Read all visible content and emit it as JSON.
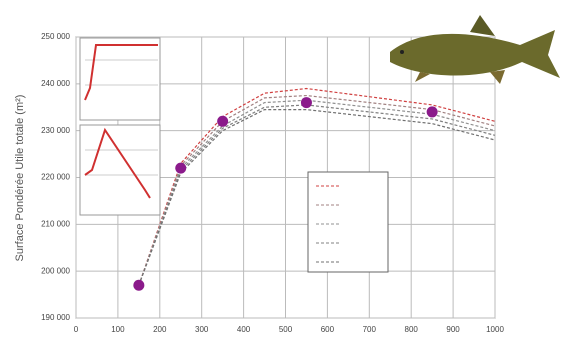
{
  "chart_data": {
    "type": "line",
    "y_label": "Surface Pondérée Utile totale (m²)",
    "x": [
      150,
      250,
      350,
      450,
      550,
      850,
      1000
    ],
    "series": [
      {
        "color": "#d04040",
        "values": [
          197000,
          223000,
          233000,
          238000,
          239000,
          235500,
          232000
        ]
      },
      {
        "color": "#a08080",
        "values": [
          197000,
          222500,
          232000,
          237000,
          237500,
          234500,
          231000
        ]
      },
      {
        "color": "#909090",
        "values": [
          197000,
          222000,
          231000,
          236000,
          236500,
          233500,
          230000
        ]
      },
      {
        "color": "#808080",
        "values": [
          197000,
          221500,
          230500,
          235000,
          235500,
          232500,
          229000
        ]
      },
      {
        "color": "#707070",
        "values": [
          197000,
          221000,
          230000,
          234500,
          234500,
          231500,
          228000
        ]
      }
    ],
    "points": {
      "color": "#8b1a8b",
      "x": [
        150,
        250,
        350,
        550,
        850
      ],
      "values": [
        197000,
        222000,
        232000,
        236000,
        234000
      ]
    },
    "xlim": [
      0,
      1000
    ],
    "xticks": [
      0,
      100,
      200,
      300,
      400,
      500,
      600,
      700,
      800,
      900,
      1000
    ],
    "ylim": [
      190000,
      250000
    ],
    "yticks": [
      {
        "value": 190000,
        "label": "190 000"
      },
      {
        "value": 200000,
        "label": "200 000"
      },
      {
        "value": 210000,
        "label": "210 000"
      },
      {
        "value": 220000,
        "label": "220 000"
      },
      {
        "value": 230000,
        "label": "230 000"
      },
      {
        "value": 240000,
        "label": "240 000"
      },
      {
        "value": 250000,
        "label": "250 000"
      }
    ],
    "grid": true
  }
}
